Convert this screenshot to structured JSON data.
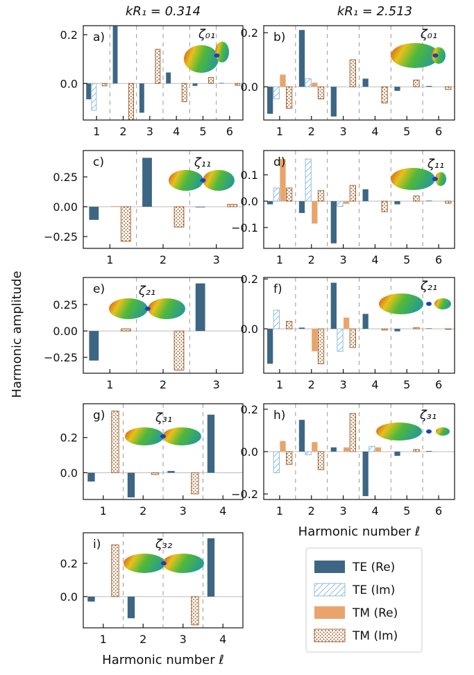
{
  "column_titles": [
    "kR₁ = 0.314",
    "kR₁ = 2.513"
  ],
  "ylabel": "Harmonic amplitude",
  "legend": [
    {
      "name": "TE (Re)",
      "color": "#3d6684",
      "fill": "solid"
    },
    {
      "name": "TE (Im)",
      "color": "#8fbbe0",
      "fill": "hatch"
    },
    {
      "name": "TM (Re)",
      "color": "#e8a46c",
      "fill": "solid"
    },
    {
      "name": "TM (Im)",
      "color": "#a0622d",
      "fill": "dots"
    }
  ],
  "chart_data": [
    {
      "type": "bar",
      "panel_label": "a)",
      "shape_label": "ζ₀₁",
      "categories": [
        1,
        2,
        3,
        4,
        5,
        6
      ],
      "ylim": [
        -0.15,
        0.237
      ],
      "yticks": [
        {
          "value": 0,
          "label": "0.0"
        },
        0.2
      ],
      "series": [
        {
          "values": [
            -0.065,
            0.235,
            -0.12,
            0.045,
            -0.01,
            0.002
          ]
        },
        {
          "values": [
            -0.11,
            0,
            0,
            0,
            0,
            0
          ]
        },
        {
          "values": [
            0,
            0,
            0,
            0,
            0,
            0
          ]
        },
        {
          "values": [
            -0.01,
            -0.15,
            0.14,
            -0.075,
            0.025,
            -0.008
          ]
        }
      ]
    },
    {
      "type": "bar",
      "panel_label": "b)",
      "shape_label": "ζ₀₁",
      "categories": [
        1,
        2,
        3,
        4,
        5,
        6
      ],
      "ylim": [
        -0.123,
        0.226
      ],
      "yticks": [
        {
          "value": 0,
          "label": "0.0"
        },
        0.2
      ],
      "series": [
        {
          "values": [
            -0.1,
            0.21,
            -0.11,
            0.03,
            -0.015,
            0.003
          ]
        },
        {
          "values": [
            -0.045,
            0.03,
            0,
            0,
            0,
            0
          ]
        },
        {
          "values": [
            0.045,
            0.015,
            0,
            0,
            0,
            0
          ]
        },
        {
          "values": [
            -0.08,
            -0.045,
            0.1,
            -0.06,
            0.025,
            -0.01
          ]
        }
      ]
    },
    {
      "type": "bar",
      "panel_label": "c)",
      "shape_label": "ζ₁₁",
      "categories": [
        1,
        2,
        3
      ],
      "ylim": [
        -0.349,
        0.471
      ],
      "yticks": [
        {
          "value": -0.25,
          "label": "−0.25"
        },
        {
          "value": 0,
          "label": "0.00"
        },
        0.25
      ],
      "series": [
        {
          "values": [
            -0.11,
            0.41,
            -0.005
          ]
        },
        {
          "values": [
            0,
            0,
            0
          ]
        },
        {
          "values": [
            0.005,
            0,
            0
          ]
        },
        {
          "values": [
            -0.29,
            -0.17,
            0.02
          ]
        }
      ]
    },
    {
      "type": "bar",
      "panel_label": "d)",
      "shape_label": "ζ₁₁",
      "categories": [
        1,
        2,
        3,
        4,
        5,
        6
      ],
      "ylim": [
        -0.179,
        0.192
      ],
      "yticks": [
        {
          "value": -0.1,
          "label": "−0.1"
        },
        {
          "value": 0,
          "label": "0.0"
        },
        0.1
      ],
      "series": [
        {
          "values": [
            -0.012,
            -0.045,
            -0.16,
            0.045,
            -0.012,
            0.002
          ]
        },
        {
          "values": [
            0.05,
            0.16,
            -0.02,
            0,
            0,
            0
          ]
        },
        {
          "values": [
            0.16,
            -0.085,
            -0.01,
            0,
            0,
            0
          ]
        },
        {
          "values": [
            0.05,
            0.04,
            0.06,
            -0.04,
            0.02,
            -0.008
          ]
        }
      ]
    },
    {
      "type": "bar",
      "panel_label": "e)",
      "shape_label": "ζ₂₁",
      "categories": [
        1,
        2,
        3
      ],
      "ylim": [
        -0.4,
        0.506
      ],
      "yticks": [
        {
          "value": -0.25,
          "label": "−0.25"
        },
        {
          "value": 0,
          "label": "0.00"
        },
        0.25
      ],
      "series": [
        {
          "values": [
            -0.28,
            0,
            0.45
          ]
        },
        {
          "values": [
            0,
            0,
            0
          ]
        },
        {
          "values": [
            0,
            0,
            0
          ]
        },
        {
          "values": [
            0.02,
            -0.37,
            0
          ]
        }
      ]
    },
    {
      "type": "bar",
      "panel_label": "f)",
      "shape_label": "ζ₂₁",
      "categories": [
        1,
        2,
        3,
        4,
        5,
        6
      ],
      "ylim": [
        -0.178,
        0.206
      ],
      "yticks": [
        {
          "value": 0,
          "label": "0.0"
        },
        0.2
      ],
      "series": [
        {
          "values": [
            -0.14,
            0.005,
            0.185,
            0.06,
            -0.01,
            0.002
          ]
        },
        {
          "values": [
            0.075,
            0,
            -0.09,
            0,
            0,
            0
          ]
        },
        {
          "values": [
            0,
            -0.09,
            0.045,
            0,
            0,
            0
          ]
        },
        {
          "values": [
            0.03,
            -0.14,
            -0.075,
            -0.005,
            0.005,
            -0.002
          ]
        }
      ]
    },
    {
      "type": "bar",
      "panel_label": "g)",
      "shape_label": "ζ₃₁",
      "categories": [
        1,
        2,
        3,
        4
      ],
      "ylim": [
        -0.152,
        0.392
      ],
      "yticks": [
        {
          "value": 0,
          "label": "0.0"
        },
        0.2
      ],
      "series": [
        {
          "values": [
            -0.05,
            -0.14,
            0.01,
            0.33
          ]
        },
        {
          "values": [
            0,
            0,
            0,
            0
          ]
        },
        {
          "values": [
            0,
            0,
            0,
            0
          ]
        },
        {
          "values": [
            0.35,
            -0.01,
            -0.12,
            0
          ]
        }
      ]
    },
    {
      "type": "bar",
      "panel_label": "h)",
      "shape_label": "ζ₃₁",
      "categories": [
        1,
        2,
        3,
        4,
        5,
        6
      ],
      "xlabel": "Harmonic number ℓ",
      "ylim": [
        -0.226,
        0.226
      ],
      "yticks": [
        {
          "value": -0.2,
          "label": "−0.2"
        },
        {
          "value": 0,
          "label": "0.0"
        },
        0.2
      ],
      "series": [
        {
          "values": [
            0,
            0.15,
            0.02,
            -0.21,
            -0.02,
            0.003
          ]
        },
        {
          "values": [
            -0.1,
            -0.015,
            0,
            0.025,
            0,
            0
          ]
        },
        {
          "values": [
            0.05,
            0.045,
            0.02,
            0.02,
            0,
            0
          ]
        },
        {
          "values": [
            -0.06,
            -0.085,
            0.18,
            0,
            0.01,
            0
          ]
        }
      ]
    },
    {
      "type": "bar",
      "panel_label": "i)",
      "shape_label": "ζ₃₂",
      "categories": [
        1,
        2,
        3,
        4
      ],
      "xlabel": "Harmonic number ℓ",
      "ylim": [
        -0.1875,
        0.383
      ],
      "yticks": [
        {
          "value": 0,
          "label": "0.0"
        },
        0.2
      ],
      "series": [
        {
          "values": [
            -0.03,
            -0.13,
            0,
            0.35
          ]
        },
        {
          "values": [
            0,
            0,
            0,
            0
          ]
        },
        {
          "values": [
            0,
            0,
            0,
            0
          ]
        },
        {
          "values": [
            0.31,
            0,
            -0.17,
            0
          ]
        }
      ]
    }
  ]
}
